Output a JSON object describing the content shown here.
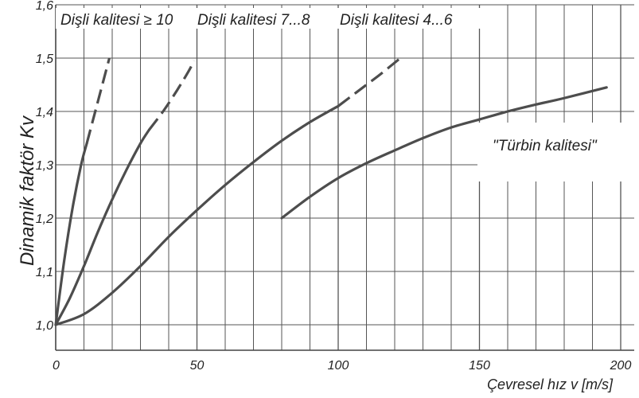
{
  "chart_data": {
    "type": "line",
    "title": "",
    "xlabel": "Çevresel hız v [m/s]",
    "ylabel": "Dinamik faktör Kv",
    "xlim": [
      0,
      208
    ],
    "ylim": [
      0.97,
      1.6
    ],
    "x_ticks": [
      {
        "value": 0,
        "label": "0"
      },
      {
        "value": 50,
        "label": "50"
      },
      {
        "value": 100,
        "label": "100"
      },
      {
        "value": 150,
        "label": "150"
      },
      {
        "value": 200,
        "label": "200"
      }
    ],
    "y_ticks": [
      {
        "value": 1.0,
        "label": "1,0"
      },
      {
        "value": 1.1,
        "label": "1,1"
      },
      {
        "value": 1.2,
        "label": "1,2"
      },
      {
        "value": 1.3,
        "label": "1,3"
      },
      {
        "value": 1.4,
        "label": "1,4"
      },
      {
        "value": 1.5,
        "label": "1,5"
      },
      {
        "value": 1.6,
        "label": "1,6"
      }
    ],
    "grid": {
      "vertical_step": 10,
      "horizontal_step": 0.1
    },
    "color": "#4d4d4d",
    "series": [
      {
        "name": "Dişli kalitesi ≥ 10",
        "solid": [
          [
            0,
            1.0
          ],
          [
            3,
            1.12
          ],
          [
            6,
            1.22
          ],
          [
            9,
            1.3
          ],
          [
            11,
            1.34
          ]
        ],
        "dashed": [
          [
            11,
            1.34
          ],
          [
            13,
            1.38
          ],
          [
            15,
            1.42
          ],
          [
            17,
            1.46
          ],
          [
            19,
            1.5
          ]
        ]
      },
      {
        "name": "Dişli kalitesi  7...8",
        "solid": [
          [
            0,
            1.0
          ],
          [
            5,
            1.05
          ],
          [
            10,
            1.11
          ],
          [
            15,
            1.175
          ],
          [
            20,
            1.235
          ],
          [
            25,
            1.29
          ],
          [
            30,
            1.34
          ],
          [
            33,
            1.365
          ]
        ],
        "dashed": [
          [
            33,
            1.365
          ],
          [
            38,
            1.4
          ],
          [
            43,
            1.44
          ],
          [
            47,
            1.475
          ],
          [
            49,
            1.495
          ]
        ]
      },
      {
        "name": "Dişli kalitesi  4...6",
        "solid": [
          [
            0,
            1.0
          ],
          [
            10,
            1.02
          ],
          [
            20,
            1.06
          ],
          [
            30,
            1.11
          ],
          [
            40,
            1.165
          ],
          [
            50,
            1.215
          ],
          [
            60,
            1.262
          ],
          [
            70,
            1.305
          ],
          [
            80,
            1.345
          ],
          [
            90,
            1.38
          ],
          [
            100,
            1.41
          ]
        ],
        "dashed": [
          [
            100,
            1.41
          ],
          [
            105,
            1.43
          ],
          [
            110,
            1.45
          ],
          [
            115,
            1.47
          ],
          [
            122,
            1.5
          ]
        ]
      },
      {
        "name": "\"Türbin kalitesi\"",
        "solid": [
          [
            80,
            1.2
          ],
          [
            90,
            1.24
          ],
          [
            100,
            1.275
          ],
          [
            110,
            1.303
          ],
          [
            120,
            1.327
          ],
          [
            130,
            1.35
          ],
          [
            140,
            1.37
          ],
          [
            150,
            1.385
          ],
          [
            160,
            1.4
          ],
          [
            170,
            1.413
          ],
          [
            180,
            1.425
          ],
          [
            195,
            1.445
          ]
        ],
        "dashed": []
      }
    ],
    "category_labels": [
      "Dişli kalitesi ≥ 10",
      "Dişli kalitesi  7...8",
      "Dişli kalitesi  4...6"
    ],
    "annotation": "\"Türbin kalitesi\""
  }
}
